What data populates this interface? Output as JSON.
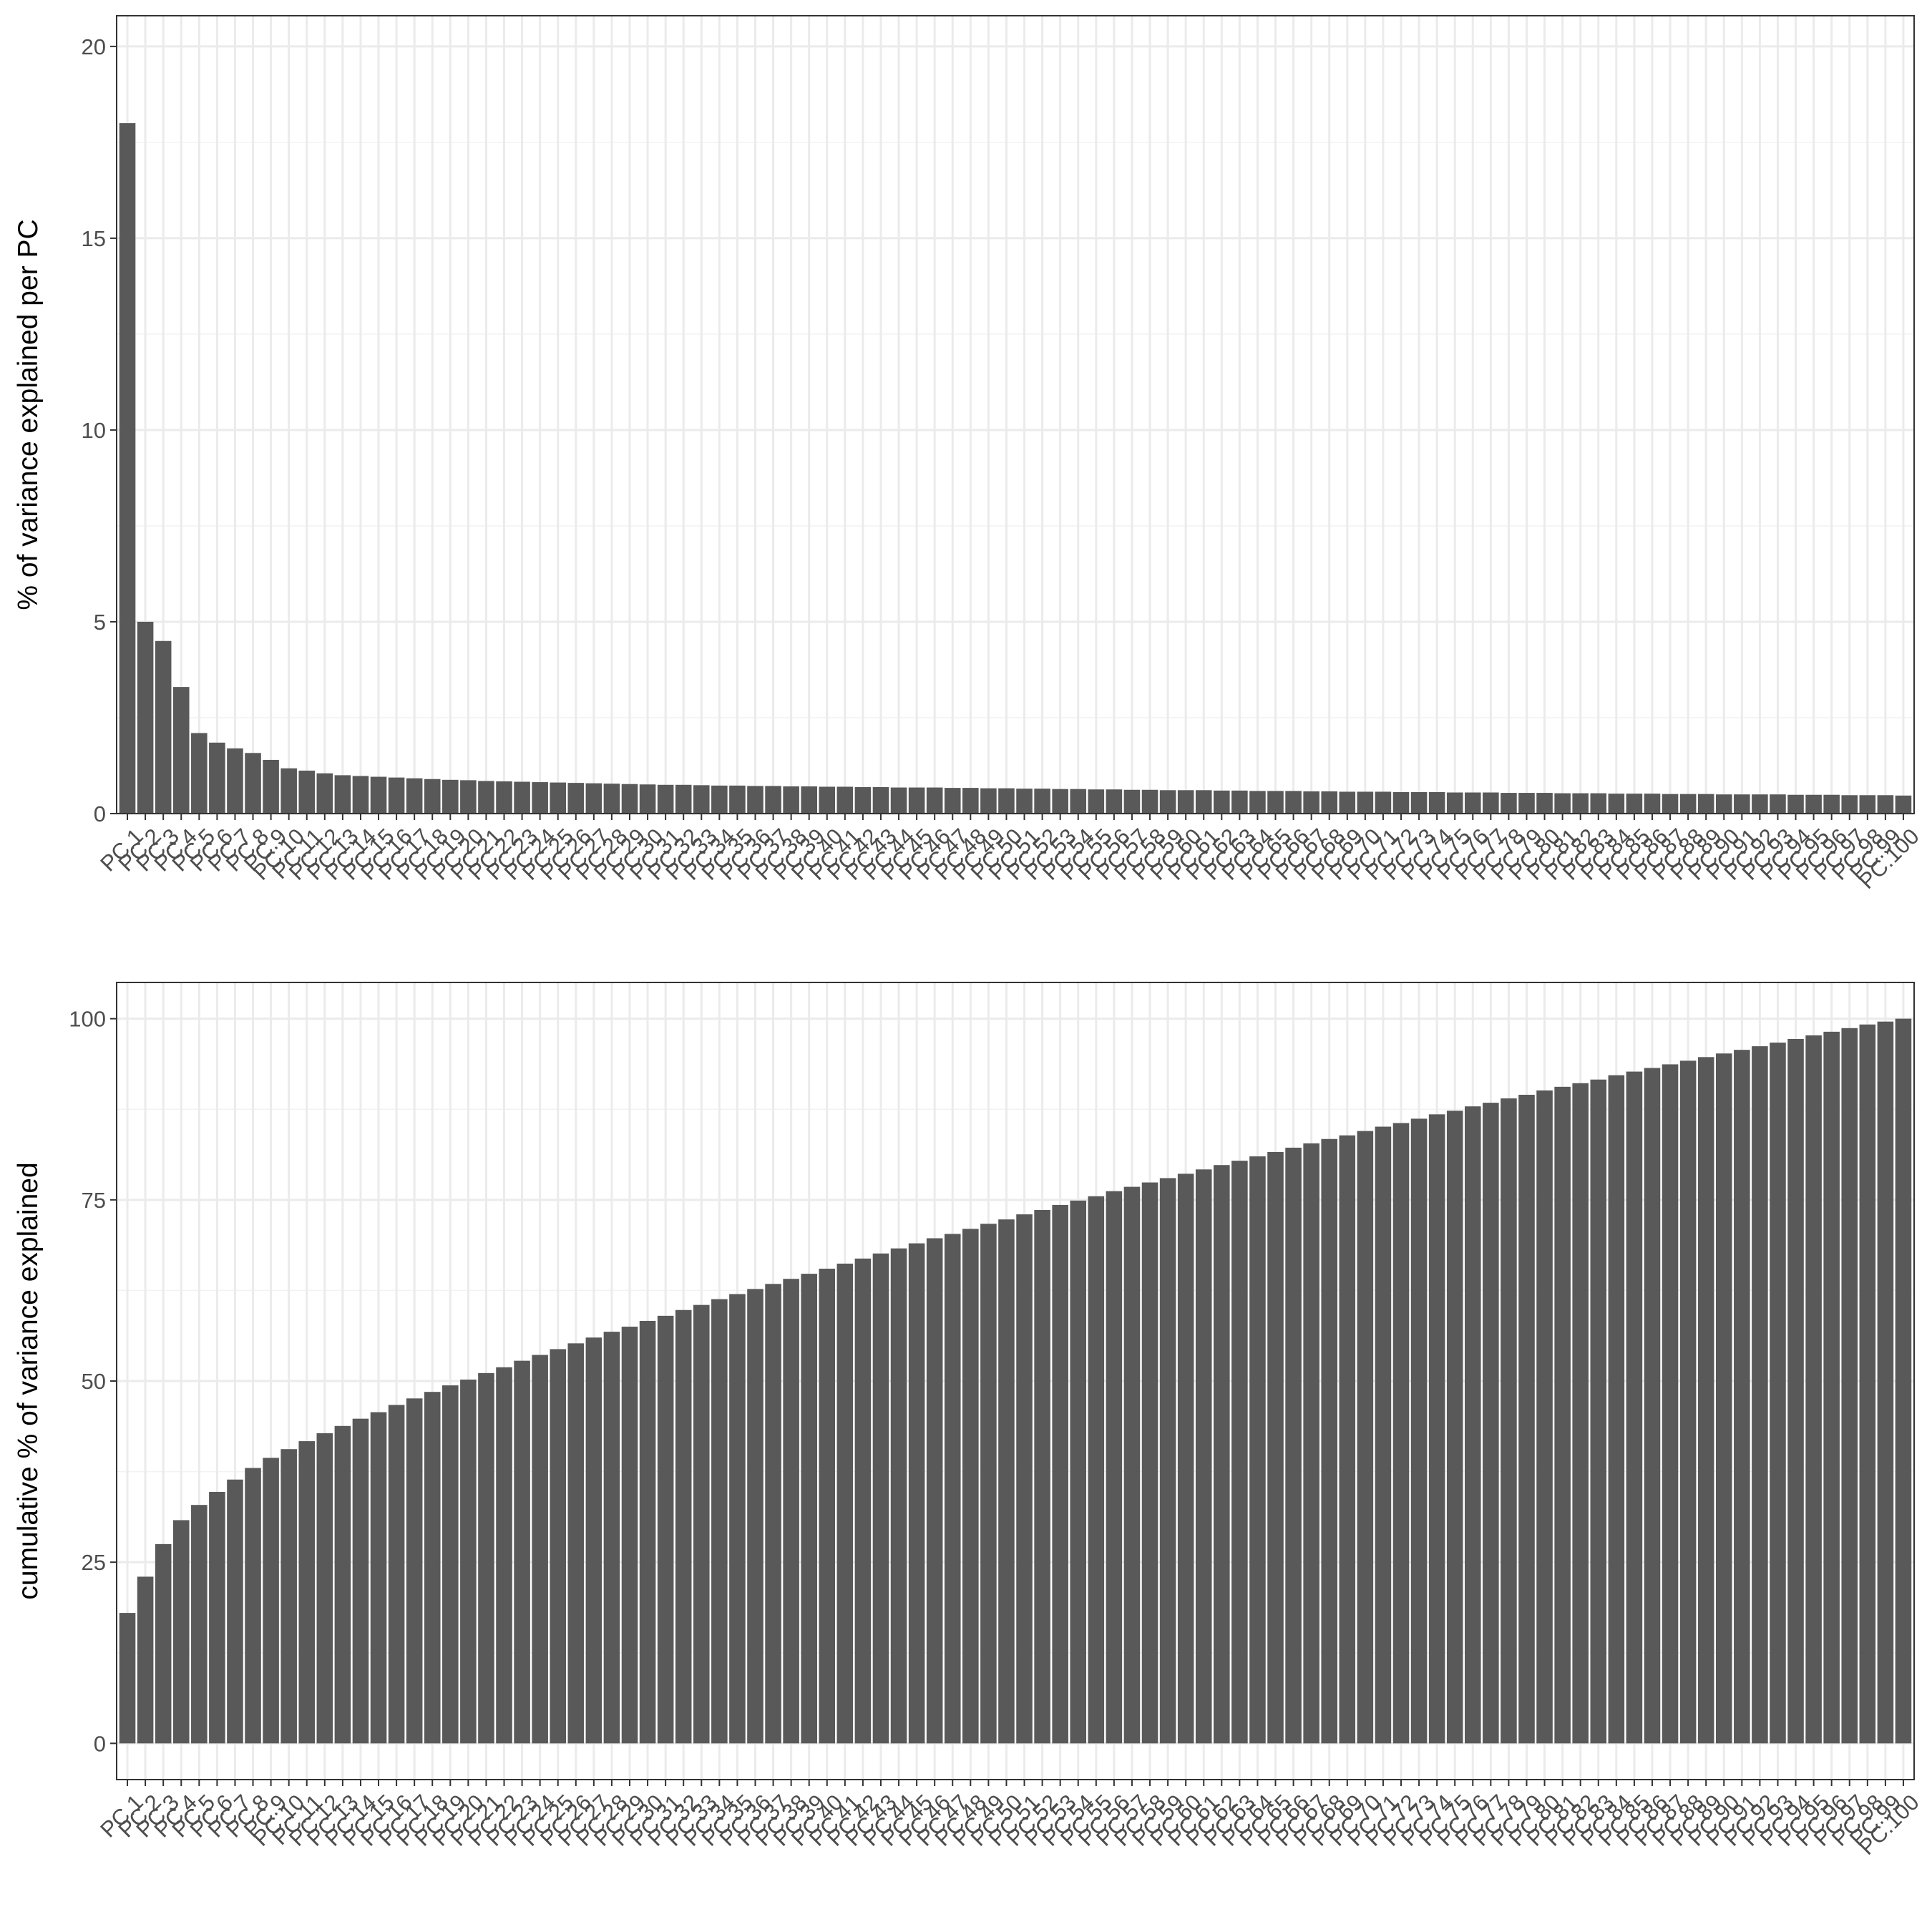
{
  "chart_data": [
    {
      "type": "bar",
      "ylabel": "% of variance explained per PC",
      "xlabel": "",
      "ylim": [
        0,
        20.8
      ],
      "yticks": [
        0,
        5,
        10,
        15,
        20
      ],
      "grid": true,
      "bar_color": "#595959",
      "categories": [
        "PC.1",
        "PC.2",
        "PC.3",
        "PC.4",
        "PC.5",
        "PC.6",
        "PC.7",
        "PC.8",
        "PC.9",
        "PC.10",
        "PC.11",
        "PC.12",
        "PC.13",
        "PC.14",
        "PC.15",
        "PC.16",
        "PC.17",
        "PC.18",
        "PC.19",
        "PC.20",
        "PC.21",
        "PC.22",
        "PC.23",
        "PC.24",
        "PC.25",
        "PC.26",
        "PC.27",
        "PC.28",
        "PC.29",
        "PC.30",
        "PC.31",
        "PC.32",
        "PC.33",
        "PC.34",
        "PC.35",
        "PC.36",
        "PC.37",
        "PC.38",
        "PC.39",
        "PC.40",
        "PC.41",
        "PC.42",
        "PC.43",
        "PC.44",
        "PC.45",
        "PC.46",
        "PC.47",
        "PC.48",
        "PC.49",
        "PC.50",
        "PC.51",
        "PC.52",
        "PC.53",
        "PC.54",
        "PC.55",
        "PC.56",
        "PC.57",
        "PC.58",
        "PC.59",
        "PC.60",
        "PC.61",
        "PC.62",
        "PC.63",
        "PC.64",
        "PC.65",
        "PC.66",
        "PC.67",
        "PC.68",
        "PC.69",
        "PC.70",
        "PC.71",
        "PC.72",
        "PC.73",
        "PC.74",
        "PC.75",
        "PC.76",
        "PC.77",
        "PC.78",
        "PC.79",
        "PC.80",
        "PC.81",
        "PC.82",
        "PC.83",
        "PC.84",
        "PC.85",
        "PC.86",
        "PC.87",
        "PC.88",
        "PC.89",
        "PC.90",
        "PC.91",
        "PC.92",
        "PC.93",
        "PC.94",
        "PC.95",
        "PC.96",
        "PC.97",
        "PC.98",
        "PC.99",
        "PC.100"
      ],
      "values": [
        18.0,
        5.0,
        4.5,
        3.3,
        2.1,
        1.85,
        1.7,
        1.58,
        1.4,
        1.18,
        1.12,
        1.05,
        1.0,
        0.98,
        0.96,
        0.94,
        0.92,
        0.9,
        0.88,
        0.87,
        0.85,
        0.84,
        0.83,
        0.82,
        0.81,
        0.8,
        0.79,
        0.78,
        0.77,
        0.76,
        0.75,
        0.75,
        0.74,
        0.73,
        0.73,
        0.72,
        0.72,
        0.71,
        0.71,
        0.7,
        0.7,
        0.69,
        0.69,
        0.68,
        0.68,
        0.68,
        0.67,
        0.67,
        0.66,
        0.66,
        0.65,
        0.65,
        0.64,
        0.64,
        0.63,
        0.63,
        0.62,
        0.62,
        0.61,
        0.61,
        0.61,
        0.6,
        0.6,
        0.59,
        0.59,
        0.59,
        0.58,
        0.58,
        0.57,
        0.57,
        0.57,
        0.56,
        0.56,
        0.56,
        0.55,
        0.55,
        0.55,
        0.54,
        0.54,
        0.54,
        0.53,
        0.53,
        0.53,
        0.52,
        0.52,
        0.52,
        0.51,
        0.51,
        0.51,
        0.5,
        0.5,
        0.5,
        0.5,
        0.49,
        0.49,
        0.49,
        0.48,
        0.48,
        0.48,
        0.47
      ]
    },
    {
      "type": "bar",
      "ylabel": "cumulative % of variance explained",
      "xlabel": "",
      "ylim": [
        -5,
        105
      ],
      "yticks": [
        0,
        25,
        50,
        75,
        100
      ],
      "grid": true,
      "bar_color": "#595959",
      "categories": [
        "PC.1",
        "PC.2",
        "PC.3",
        "PC.4",
        "PC.5",
        "PC.6",
        "PC.7",
        "PC.8",
        "PC.9",
        "PC.10",
        "PC.11",
        "PC.12",
        "PC.13",
        "PC.14",
        "PC.15",
        "PC.16",
        "PC.17",
        "PC.18",
        "PC.19",
        "PC.20",
        "PC.21",
        "PC.22",
        "PC.23",
        "PC.24",
        "PC.25",
        "PC.26",
        "PC.27",
        "PC.28",
        "PC.29",
        "PC.30",
        "PC.31",
        "PC.32",
        "PC.33",
        "PC.34",
        "PC.35",
        "PC.36",
        "PC.37",
        "PC.38",
        "PC.39",
        "PC.40",
        "PC.41",
        "PC.42",
        "PC.43",
        "PC.44",
        "PC.45",
        "PC.46",
        "PC.47",
        "PC.48",
        "PC.49",
        "PC.50",
        "PC.51",
        "PC.52",
        "PC.53",
        "PC.54",
        "PC.55",
        "PC.56",
        "PC.57",
        "PC.58",
        "PC.59",
        "PC.60",
        "PC.61",
        "PC.62",
        "PC.63",
        "PC.64",
        "PC.65",
        "PC.66",
        "PC.67",
        "PC.68",
        "PC.69",
        "PC.70",
        "PC.71",
        "PC.72",
        "PC.73",
        "PC.74",
        "PC.75",
        "PC.76",
        "PC.77",
        "PC.78",
        "PC.79",
        "PC.80",
        "PC.81",
        "PC.82",
        "PC.83",
        "PC.84",
        "PC.85",
        "PC.86",
        "PC.87",
        "PC.88",
        "PC.89",
        "PC.90",
        "PC.91",
        "PC.92",
        "PC.93",
        "PC.94",
        "PC.95",
        "PC.96",
        "PC.97",
        "PC.98",
        "PC.99",
        "PC.100"
      ],
      "values": [
        18.0,
        23.0,
        27.5,
        30.8,
        32.9,
        34.7,
        36.4,
        38.0,
        39.4,
        40.6,
        41.7,
        42.8,
        43.8,
        44.8,
        45.7,
        46.7,
        47.6,
        48.5,
        49.4,
        50.2,
        51.1,
        51.9,
        52.8,
        53.6,
        54.4,
        55.2,
        56.0,
        56.8,
        57.5,
        58.3,
        59.0,
        59.8,
        60.5,
        61.3,
        62.0,
        62.7,
        63.4,
        64.1,
        64.8,
        65.5,
        66.2,
        66.9,
        67.6,
        68.3,
        69.0,
        69.7,
        70.3,
        71.0,
        71.7,
        72.3,
        73.0,
        73.6,
        74.3,
        74.9,
        75.5,
        76.2,
        76.8,
        77.4,
        78.0,
        78.6,
        79.2,
        79.8,
        80.4,
        81.0,
        81.6,
        82.2,
        82.8,
        83.4,
        83.9,
        84.5,
        85.1,
        85.6,
        86.2,
        86.8,
        87.3,
        87.9,
        88.4,
        89.0,
        89.5,
        90.1,
        90.6,
        91.1,
        91.6,
        92.2,
        92.7,
        93.2,
        93.7,
        94.2,
        94.7,
        95.2,
        95.7,
        96.2,
        96.7,
        97.2,
        97.7,
        98.2,
        98.7,
        99.2,
        99.6,
        100.0
      ]
    }
  ]
}
